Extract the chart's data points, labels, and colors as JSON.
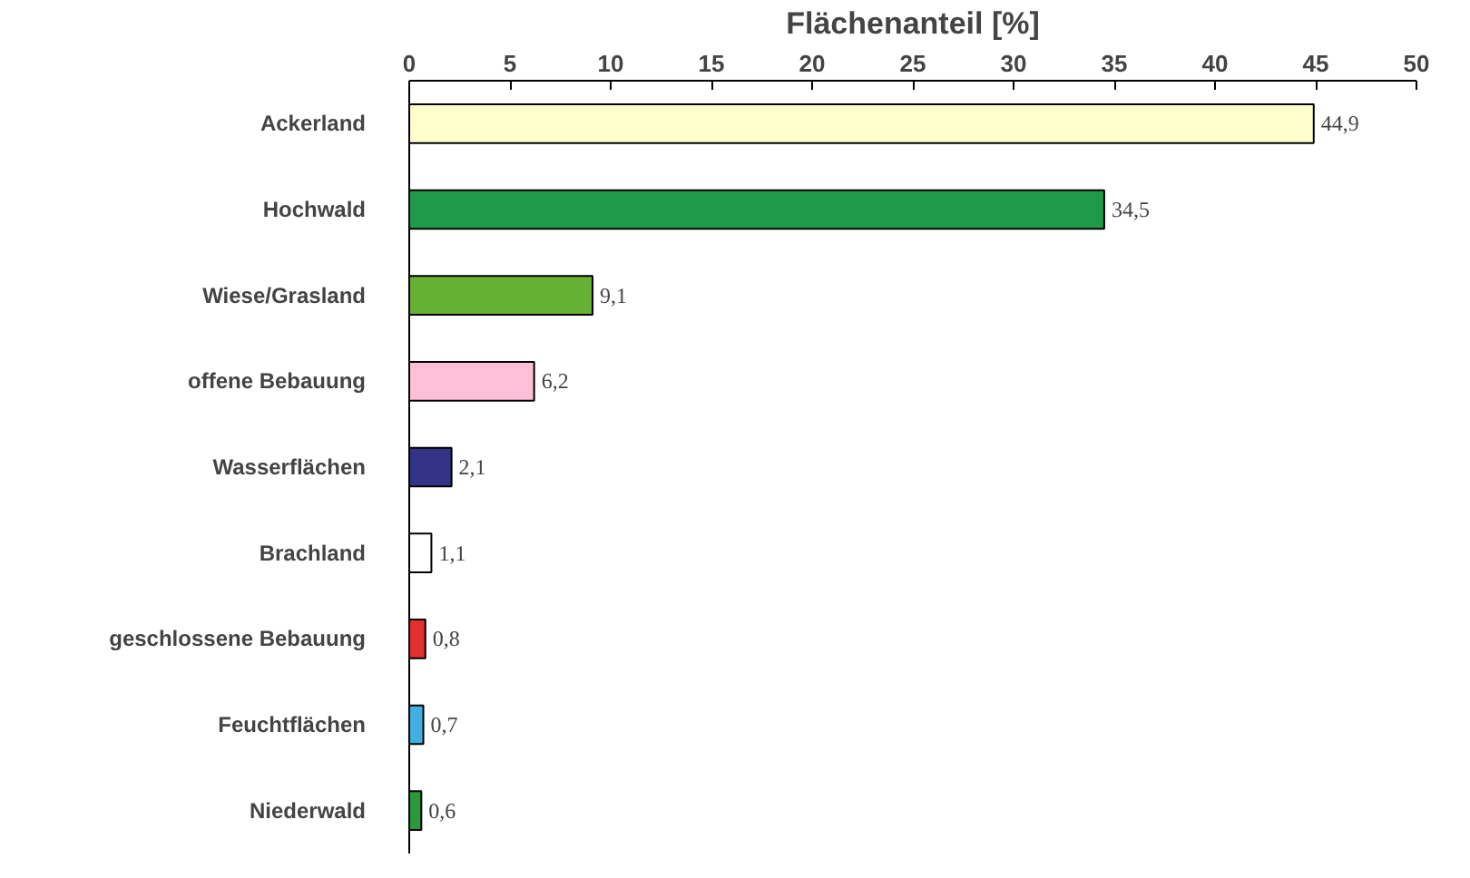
{
  "chart_data": {
    "type": "bar",
    "orientation": "horizontal",
    "xlabel": "Flächenanteil [%]",
    "categories": [
      "Ackerland",
      "Hochwald",
      "Wiese/Grasland",
      "offene Bebauung",
      "Wasserflächen",
      "Brachland",
      "geschlossene Bebauung",
      "Feuchtflächen",
      "Niederwald"
    ],
    "values": [
      44.9,
      34.5,
      9.1,
      6.2,
      2.1,
      1.1,
      0.8,
      0.7,
      0.6
    ],
    "colors": [
      "#ffffcc",
      "#1f9a4a",
      "#66b032",
      "#ffbfd9",
      "#333388",
      "#ffffff",
      "#e03030",
      "#40b0e0",
      "#2a9a3a"
    ],
    "value_labels": [
      "44,9",
      "34,5",
      "9,1",
      "6,2",
      "2,1",
      "1,1",
      "0,8",
      "0,7",
      "0,6"
    ],
    "xlim": [
      0,
      50
    ],
    "xticks": [
      0,
      5,
      10,
      15,
      20,
      25,
      30,
      35,
      40,
      45,
      50
    ],
    "grid": false
  }
}
